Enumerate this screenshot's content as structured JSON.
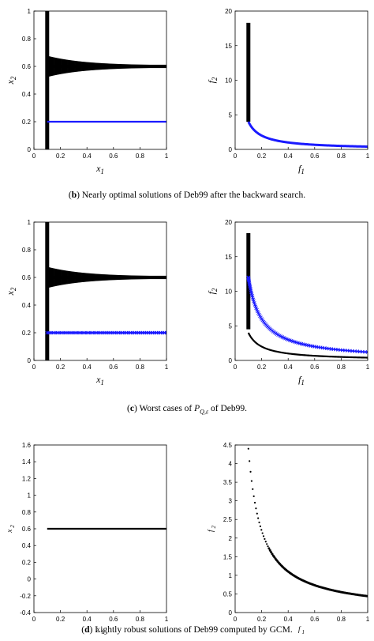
{
  "captions": {
    "b": {
      "label": "b",
      "text": " Nearly optimal solutions of Deb99 after the backward search."
    },
    "c": {
      "label": "c",
      "pre": " Worst cases of ",
      "symbol": "P",
      "sub": "Q,ε",
      "post": " of Deb99."
    },
    "d": {
      "label": "d",
      "text": " Lightly robust solutions of Deb99 computed by GCM."
    }
  },
  "colors": {
    "black": "#000000",
    "blue": "#1a1aff"
  },
  "chart_data": [
    {
      "id": "b-left",
      "type": "scatter",
      "xlabel": "x",
      "xsub": "1",
      "ylabel": "x",
      "ysub": "2",
      "xlim": [
        0,
        1
      ],
      "ylim": [
        0,
        1
      ],
      "xticks": [
        "0",
        "0.2",
        "0.4",
        "0.6",
        "0.8",
        "1"
      ],
      "yticks": [
        "0",
        "0.2",
        "0.4",
        "0.6",
        "0.8",
        "1"
      ],
      "series": [
        {
          "color": "black",
          "kind": "vertical-band",
          "x": 0.1,
          "y": [
            0,
            1
          ]
        },
        {
          "color": "black",
          "kind": "converging-band",
          "x": [
            0.1,
            1
          ],
          "y_center": 0.6,
          "y_spread_start": 0.1,
          "y_spread_end": 0.01
        },
        {
          "color": "blue",
          "kind": "hline",
          "x": [
            0.1,
            1
          ],
          "y": 0.2
        }
      ]
    },
    {
      "id": "b-right",
      "type": "scatter",
      "xlabel": "f",
      "xsub": "1",
      "ylabel": "f",
      "ysub": "2",
      "xlim": [
        0,
        1
      ],
      "ylim": [
        0,
        20
      ],
      "xticks": [
        "0",
        "0.2",
        "0.4",
        "0.6",
        "0.8",
        "1"
      ],
      "yticks": [
        "0",
        "5",
        "10",
        "15",
        "20"
      ],
      "series": [
        {
          "color": "black",
          "kind": "vertical-band",
          "x": 0.1,
          "y": [
            4,
            18.3
          ]
        },
        {
          "color": "blue",
          "kind": "curve",
          "formula": "0.4/x",
          "x": [
            0.1,
            1
          ]
        }
      ]
    },
    {
      "id": "c-left",
      "type": "scatter",
      "xlabel": "x",
      "xsub": "1",
      "ylabel": "x",
      "ysub": "2",
      "xlim": [
        0,
        1
      ],
      "ylim": [
        0,
        1
      ],
      "xticks": [
        "0",
        "0.2",
        "0.4",
        "0.6",
        "0.8",
        "1"
      ],
      "yticks": [
        "0",
        "0.2",
        "0.4",
        "0.6",
        "0.8",
        "1"
      ],
      "series": [
        {
          "color": "black",
          "kind": "vertical-band",
          "x": 0.1,
          "y": [
            0,
            1
          ]
        },
        {
          "color": "black",
          "kind": "converging-band",
          "x": [
            0.1,
            1
          ],
          "y_center": 0.6,
          "y_spread_start": 0.1,
          "y_spread_end": 0.01
        },
        {
          "color": "blue",
          "kind": "hline-x",
          "x": [
            0.1,
            1
          ],
          "y": 0.2
        }
      ]
    },
    {
      "id": "c-right",
      "type": "scatter",
      "xlabel": "f",
      "xsub": "1",
      "ylabel": "f",
      "ysub": "2",
      "xlim": [
        0,
        1
      ],
      "ylim": [
        0,
        20
      ],
      "xticks": [
        "0",
        "0.2",
        "0.4",
        "0.6",
        "0.8",
        "1"
      ],
      "yticks": [
        "0",
        "5",
        "10",
        "15",
        "20"
      ],
      "series": [
        {
          "color": "black",
          "kind": "vertical-band",
          "x": 0.1,
          "y": [
            4.5,
            18.4
          ]
        },
        {
          "color": "black",
          "kind": "curve",
          "formula": "0.4/x",
          "x": [
            0.1,
            1
          ]
        },
        {
          "color": "blue",
          "kind": "curve-x",
          "formula": "1.2/x",
          "x": [
            0.1,
            1
          ]
        }
      ]
    },
    {
      "id": "d-left",
      "type": "line",
      "xlabel": "x",
      "xsub": "1",
      "ylabel": "x",
      "ysub": "2",
      "xlim": [
        0,
        1
      ],
      "ylim": [
        -0.4,
        1.6
      ],
      "xticks": [
        "0",
        "0.2",
        "0.4",
        "0.6",
        "0.8",
        "1"
      ],
      "yticks": [
        "-0.4",
        "-0.2",
        "0",
        "0.2",
        "0.4",
        "0.6",
        "0.8",
        "1",
        "1.2",
        "1.4",
        "1.6"
      ],
      "series": [
        {
          "color": "black",
          "kind": "hline",
          "x": [
            0.1,
            1
          ],
          "y": 0.6
        }
      ]
    },
    {
      "id": "d-right",
      "type": "scatter",
      "xlabel": "f",
      "xsub": "1",
      "ylabel": "f",
      "ysub": "2",
      "xlim": [
        0,
        1
      ],
      "ylim": [
        0,
        4.5
      ],
      "xticks": [
        "0",
        "0.2",
        "0.4",
        "0.6",
        "0.8",
        "1"
      ],
      "yticks": [
        "0",
        "0.5",
        "1",
        "1.5",
        "2",
        "2.5",
        "3",
        "3.5",
        "4",
        "4.5"
      ],
      "series": [
        {
          "color": "black",
          "kind": "dots",
          "formula": "0.44/x",
          "x": [
            0.1,
            1
          ]
        }
      ]
    }
  ]
}
